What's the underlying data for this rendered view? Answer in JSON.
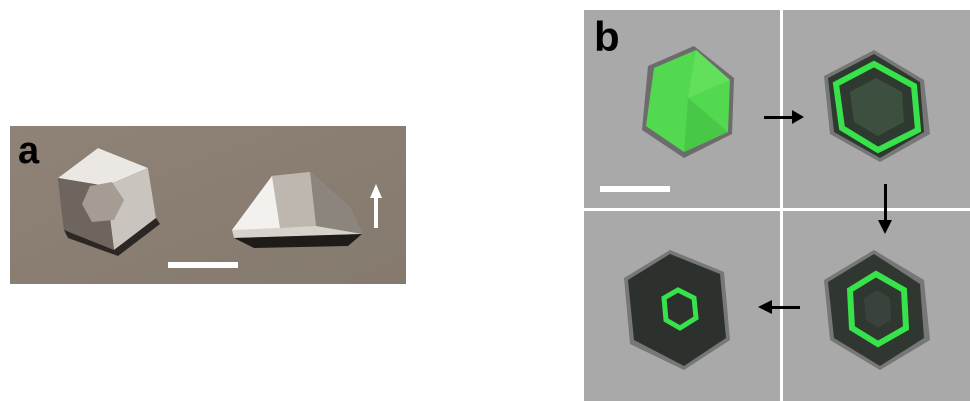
{
  "figure": {
    "panels": [
      {
        "label": "a",
        "contents": [
          "hexagonal-crystal-top-view",
          "hexagonal-crystal-side-view",
          "scale-bar",
          "up-arrow"
        ],
        "colors": {
          "background": "#8b7e72",
          "crystal_light": "#e9e6e1",
          "crystal_dark": "#3a3531",
          "scale_bar": "#ffffff"
        }
      },
      {
        "label": "b",
        "sequence_order": [
          "top-left",
          "top-right",
          "bottom-right",
          "bottom-left"
        ],
        "contents": [
          "fluorescent-hexagon-uniform",
          "fluorescent-hexagon-ring-large",
          "fluorescent-hexagon-ring-medium",
          "fluorescent-hexagon-ring-small",
          "scale-bar",
          "sequence-arrows"
        ],
        "colors": {
          "background": "#a7a7a7",
          "fluorescence": "#33e04a",
          "crystal_dark": "#2c3a2e",
          "divider": "#ffffff"
        }
      }
    ]
  }
}
